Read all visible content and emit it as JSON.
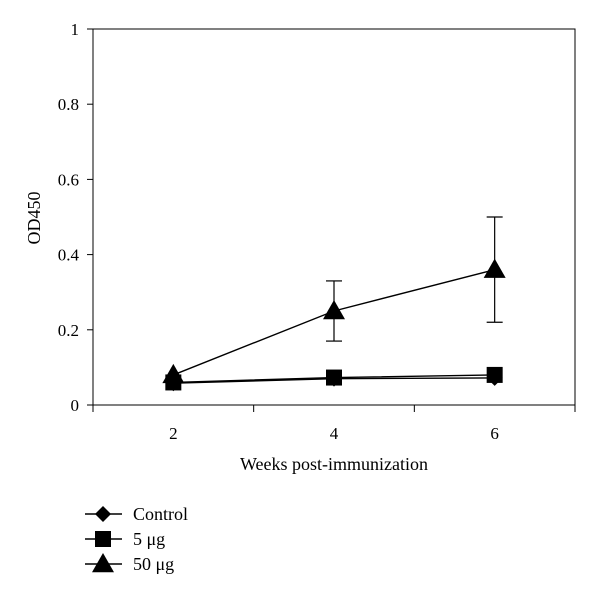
{
  "chart_data": {
    "type": "line",
    "title": "",
    "xlabel": "Weeks post-immunization",
    "ylabel": "OD450",
    "x": [
      2,
      4,
      6
    ],
    "xticks": [
      "2",
      "4",
      "6"
    ],
    "xlim": [
      1,
      7
    ],
    "ylim": [
      0,
      1
    ],
    "yticks": [
      "0",
      "0.2",
      "0.4",
      "0.6",
      "0.8",
      "1"
    ],
    "grid": false,
    "legend_position": "bottom-left",
    "series": [
      {
        "name": "Control",
        "marker": "diamond",
        "values": [
          0.058,
          0.07,
          0.072
        ],
        "errors": [
          0.0,
          0.0,
          0.0
        ]
      },
      {
        "name": "5 μg",
        "marker": "square",
        "values": [
          0.06,
          0.073,
          0.08
        ],
        "errors": [
          0.0,
          0.0,
          0.0
        ]
      },
      {
        "name": "50 μg",
        "marker": "triangle",
        "values": [
          0.08,
          0.25,
          0.36
        ],
        "errors": [
          0.0,
          0.08,
          0.14
        ]
      }
    ],
    "colors": {
      "line": "#000000",
      "marker": "#000000"
    }
  }
}
